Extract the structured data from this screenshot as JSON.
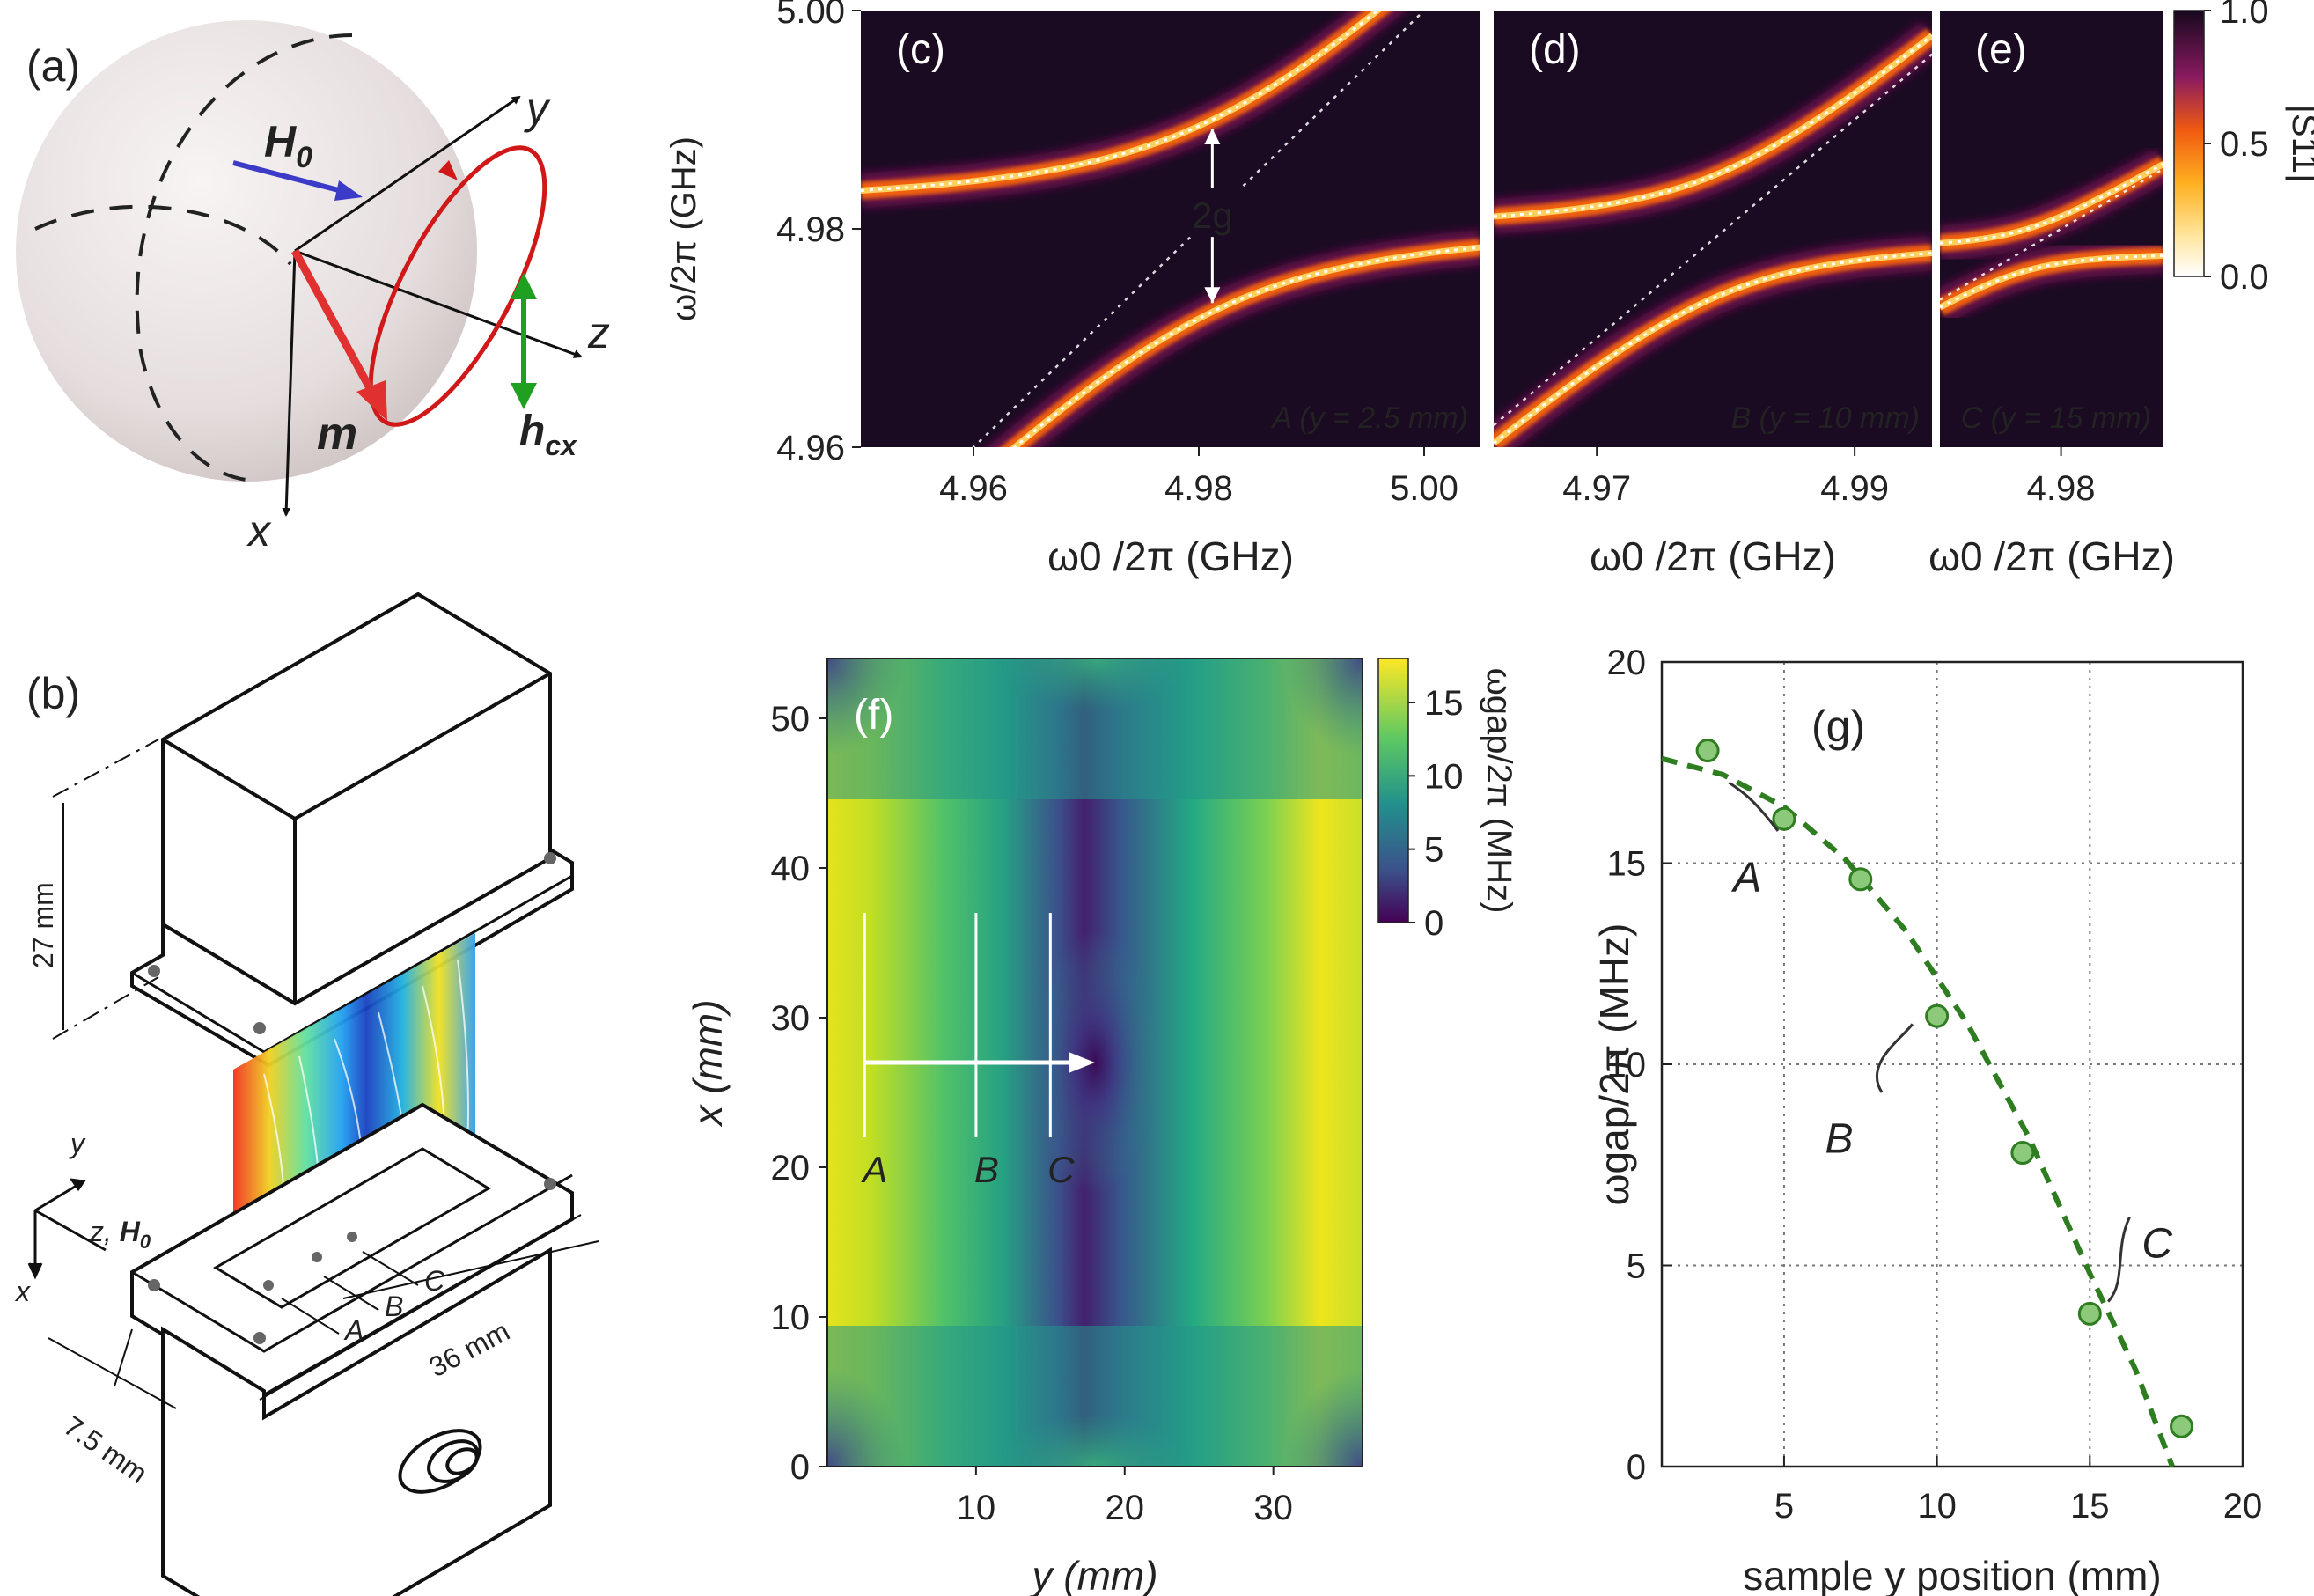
{
  "panel_labels": {
    "a": "(a)",
    "b": "(b)",
    "c": "(c)",
    "d": "(d)",
    "e": "(e)",
    "f": "(f)",
    "g": "(g)"
  },
  "sphere": {
    "H0": "H",
    "H0_sub": "0",
    "m": "m",
    "hcx": "h",
    "hcx_sub": "cx",
    "x": "x",
    "y": "y",
    "z": "z"
  },
  "device": {
    "dim_27": "27 mm",
    "dim_36": "36 mm",
    "dim_75": "7.5 mm",
    "axis_y": "y",
    "axis_x": "x",
    "axis_z": "z, ",
    "axis_H": "H",
    "axis_H_sub": "0",
    "pos_A": "A",
    "pos_B": "B",
    "pos_C": "C"
  },
  "colors": {
    "purple_dark": "#1a0a22",
    "fit_line": "#ffffff",
    "green": "#2e7d20",
    "marker_fill": "#8cc97a"
  },
  "chart_data": [
    {
      "id": "c",
      "type": "heatmap",
      "title": "(c)",
      "subtitle": "A (y = 2.5 mm)",
      "xlabel": "ω0 /2π (GHz)",
      "ylabel": "ω/2π (GHz)",
      "xlim": [
        4.95,
        5.005
      ],
      "ylim": [
        4.96,
        5.0
      ],
      "xticks": [
        "4.96",
        "4.98",
        "5.00"
      ],
      "yticks": [
        "4.96",
        "4.98",
        "5.00"
      ],
      "cavity_freq": 4.9812,
      "coupling_g": 0.0088,
      "annotation": "2g"
    },
    {
      "id": "d",
      "type": "heatmap",
      "title": "(d)",
      "subtitle": "B (y = 10 mm)",
      "xlabel": "ω0 /2π (GHz)",
      "xlim": [
        4.962,
        4.996
      ],
      "ylim": [
        4.96,
        5.0
      ],
      "xticks": [
        "4.97",
        "4.99"
      ],
      "cavity_freq": 4.9795,
      "coupling_g": 0.0056
    },
    {
      "id": "e",
      "type": "heatmap",
      "title": "(e)",
      "subtitle": "C (y = 15 mm)",
      "xlabel": "ω0 /2π (GHz)",
      "xlim": [
        4.9735,
        4.9855
      ],
      "ylim": [
        4.96,
        5.0
      ],
      "xticks": [
        "4.98"
      ],
      "cavity_freq": 4.978,
      "coupling_g": 0.0019,
      "colorbar": {
        "label": "|S11|",
        "ticks": [
          "0.0",
          "0.5",
          "1.0"
        ],
        "range": [
          0,
          1
        ]
      }
    },
    {
      "id": "f",
      "type": "heatmap",
      "title": "(f)",
      "xlabel": "y (mm)",
      "ylabel": "x (mm)",
      "xlim": [
        0,
        36
      ],
      "ylim": [
        0,
        54
      ],
      "xticks": [
        "10",
        "20",
        "30"
      ],
      "yticks": [
        "0",
        "10",
        "20",
        "30",
        "40",
        "50"
      ],
      "marker_lines_y": [
        2.5,
        10,
        15
      ],
      "marker_labels": [
        "A",
        "B",
        "C"
      ],
      "arrow": {
        "from_y": 2.5,
        "to_y": 18,
        "at_x": 27
      },
      "colorbar": {
        "label": "ωgap/2π (MHz)",
        "ticks": [
          "0",
          "5",
          "10",
          "15"
        ],
        "range": [
          0,
          18
        ]
      }
    },
    {
      "id": "g",
      "type": "scatter",
      "title": "(g)",
      "xlabel": "sample y position (mm)",
      "ylabel": "ωgap/2π (MHz)",
      "xlim": [
        1,
        20
      ],
      "ylim": [
        0,
        20
      ],
      "xticks": [
        5,
        10,
        15,
        20
      ],
      "yticks": [
        0,
        5,
        10,
        15,
        20
      ],
      "points": [
        {
          "x": 2.5,
          "y": 17.8
        },
        {
          "x": 5.0,
          "y": 16.1
        },
        {
          "x": 7.5,
          "y": 14.6
        },
        {
          "x": 10.0,
          "y": 11.2
        },
        {
          "x": 12.8,
          "y": 7.8
        },
        {
          "x": 15.0,
          "y": 3.8
        },
        {
          "x": 18.0,
          "y": 1.0
        }
      ],
      "fit": [
        {
          "x": 1,
          "y": 17.6
        },
        {
          "x": 3,
          "y": 17.2
        },
        {
          "x": 5,
          "y": 16.4
        },
        {
          "x": 7,
          "y": 15.1
        },
        {
          "x": 9,
          "y": 13.3
        },
        {
          "x": 11,
          "y": 11.0
        },
        {
          "x": 13,
          "y": 8.2
        },
        {
          "x": 15,
          "y": 4.8
        },
        {
          "x": 16.5,
          "y": 2.4
        },
        {
          "x": 17.7,
          "y": 0
        }
      ],
      "annotations": [
        "A",
        "B",
        "C"
      ]
    }
  ]
}
